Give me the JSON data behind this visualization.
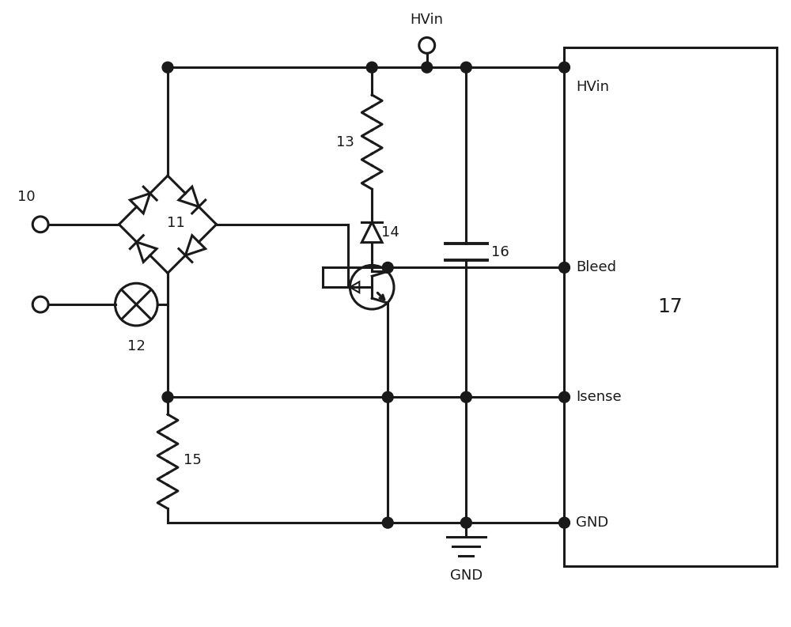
{
  "bg": "#ffffff",
  "lc": "#1a1a1a",
  "lw": 2.2,
  "fw": 10.0,
  "fh": 7.93,
  "xlim": [
    0,
    10
  ],
  "ylim": [
    0,
    7.93
  ]
}
